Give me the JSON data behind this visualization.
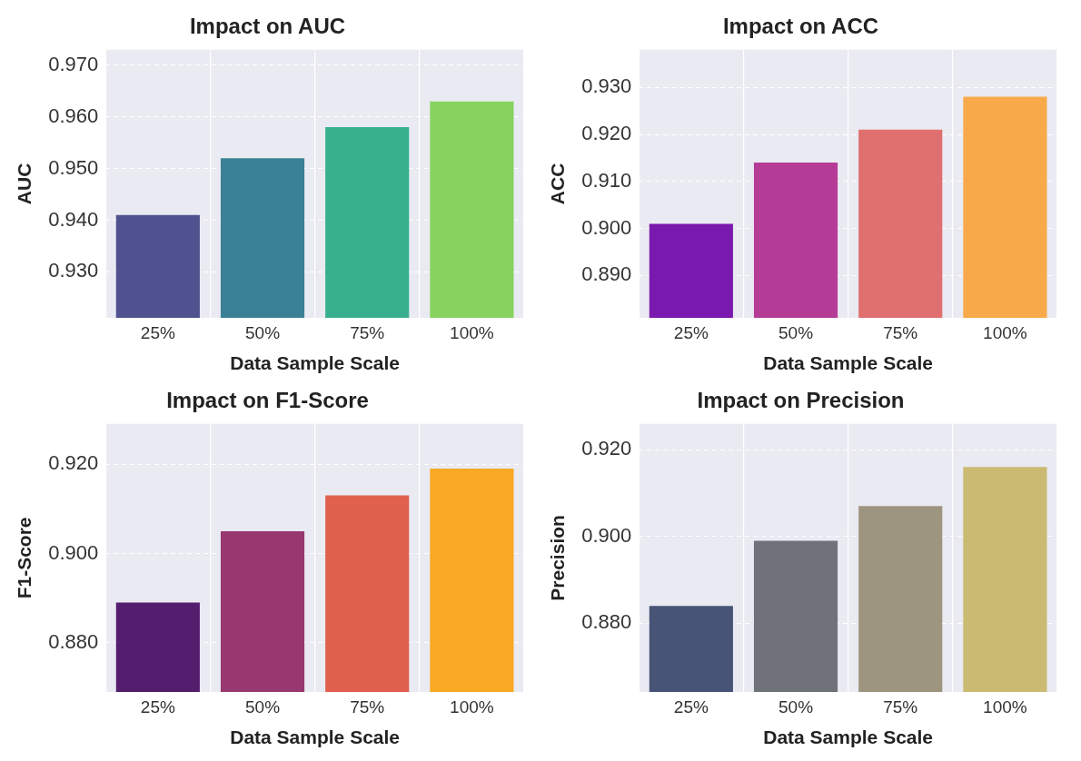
{
  "chart_data": [
    {
      "type": "bar",
      "title": "Impact on AUC",
      "xlabel": "Data Sample Scale",
      "ylabel": "AUC",
      "categories": [
        "25%",
        "50%",
        "75%",
        "100%"
      ],
      "values": [
        0.941,
        0.952,
        0.958,
        0.963
      ],
      "colors": [
        "#50528f",
        "#3b8196",
        "#38b08e",
        "#86d35f"
      ],
      "ylim": [
        0.9211,
        0.973
      ],
      "yticks": [
        {
          "value": 0.93,
          "label": "0.930"
        },
        {
          "value": 0.94,
          "label": "0.940"
        },
        {
          "value": 0.95,
          "label": "0.950"
        },
        {
          "value": 0.96,
          "label": "0.960"
        },
        {
          "value": 0.97,
          "label": "0.970"
        }
      ],
      "grid": true
    },
    {
      "type": "bar",
      "title": "Impact on ACC",
      "xlabel": "Data Sample Scale",
      "ylabel": "ACC",
      "categories": [
        "25%",
        "50%",
        "75%",
        "100%"
      ],
      "values": [
        0.901,
        0.914,
        0.921,
        0.928
      ],
      "colors": [
        "#7a19ae",
        "#b43c96",
        "#e06f6f",
        "#f8aa4a"
      ],
      "ylim": [
        0.881,
        0.938
      ],
      "yticks": [
        {
          "value": 0.89,
          "label": "0.890"
        },
        {
          "value": 0.9,
          "label": "0.900"
        },
        {
          "value": 0.91,
          "label": "0.910"
        },
        {
          "value": 0.92,
          "label": "0.920"
        },
        {
          "value": 0.93,
          "label": "0.930"
        }
      ],
      "grid": true
    },
    {
      "type": "bar",
      "title": "Impact on F1-Score",
      "xlabel": "Data Sample Scale",
      "ylabel": "F1-Score",
      "categories": [
        "25%",
        "50%",
        "75%",
        "100%"
      ],
      "values": [
        0.889,
        0.905,
        0.913,
        0.919
      ],
      "colors": [
        "#541d6e",
        "#983870",
        "#e0604e",
        "#f8a823"
      ],
      "ylim": [
        0.869,
        0.929
      ],
      "yticks": [
        {
          "value": 0.88,
          "label": "0.880"
        },
        {
          "value": 0.9,
          "label": "0.900"
        },
        {
          "value": 0.92,
          "label": "0.920"
        }
      ],
      "grid": true
    },
    {
      "type": "bar",
      "title": "Impact on Precision",
      "xlabel": "Data Sample Scale",
      "ylabel": "Precision",
      "categories": [
        "25%",
        "50%",
        "75%",
        "100%"
      ],
      "values": [
        0.884,
        0.899,
        0.907,
        0.916
      ],
      "colors": [
        "#475477",
        "#70727a",
        "#9d957f",
        "#cbba72"
      ],
      "ylim": [
        0.8642,
        0.9259
      ],
      "yticks": [
        {
          "value": 0.88,
          "label": "0.880"
        },
        {
          "value": 0.9,
          "label": "0.900"
        },
        {
          "value": 0.92,
          "label": "0.920"
        }
      ],
      "grid": true
    }
  ]
}
